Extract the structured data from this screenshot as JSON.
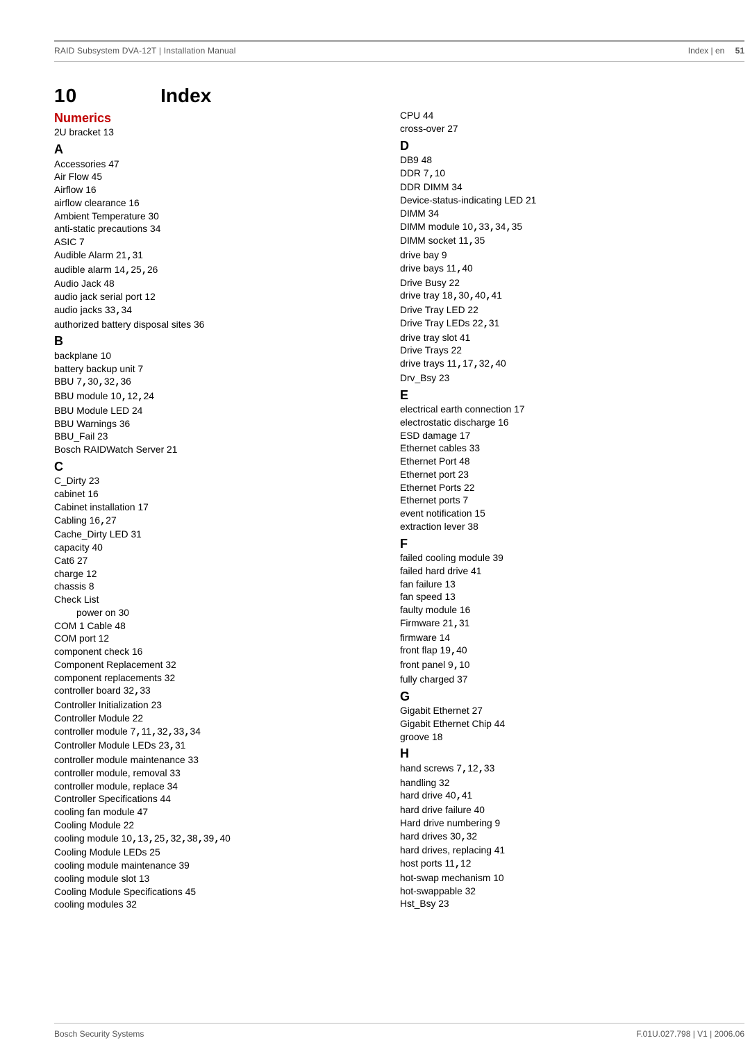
{
  "header": {
    "left": "RAID Subsystem DVA-12T | Installation Manual",
    "right_label": "Index | en",
    "right_page": "51"
  },
  "footer": {
    "left": "Bosch Security Systems",
    "right": "F.01U.027.798 | V1 | 2006.06"
  },
  "chapter": {
    "num": "10",
    "name": "Index"
  },
  "numerics_label": "Numerics",
  "left": {
    "numerics": [
      {
        "term": "2U bracket",
        "locs": [
          "13"
        ]
      }
    ],
    "groups": [
      {
        "letter": "A",
        "entries": [
          {
            "term": "Accessories",
            "locs": [
              "47"
            ]
          },
          {
            "term": "Air Flow",
            "locs": [
              "45"
            ]
          },
          {
            "term": "Airflow",
            "locs": [
              "16"
            ]
          },
          {
            "term": "airflow clearance",
            "locs": [
              "16"
            ]
          },
          {
            "term": "Ambient Temperature",
            "locs": [
              "30"
            ]
          },
          {
            "term": "anti-static precautions",
            "locs": [
              "34"
            ]
          },
          {
            "term": "ASIC",
            "locs": [
              "7"
            ]
          },
          {
            "term": "Audible Alarm",
            "locs": [
              "21",
              "31"
            ]
          },
          {
            "term": "audible alarm",
            "locs": [
              "14",
              "25",
              "26"
            ]
          },
          {
            "term": "Audio Jack",
            "locs": [
              "48"
            ]
          },
          {
            "term": "audio jack serial port",
            "locs": [
              "12"
            ]
          },
          {
            "term": "audio jacks",
            "locs": [
              "33",
              "34"
            ]
          },
          {
            "term": "authorized battery disposal sites",
            "locs": [
              "36"
            ]
          }
        ]
      },
      {
        "letter": "B",
        "entries": [
          {
            "term": "backplane",
            "locs": [
              "10"
            ]
          },
          {
            "term": "battery backup unit",
            "locs": [
              "7"
            ]
          },
          {
            "term": "BBU",
            "locs": [
              "7",
              "30",
              "32",
              "36"
            ]
          },
          {
            "term": "BBU module",
            "locs": [
              "10",
              "12",
              "24"
            ]
          },
          {
            "term": "BBU Module LED",
            "locs": [
              "24"
            ]
          },
          {
            "term": "BBU Warnings",
            "locs": [
              "36"
            ]
          },
          {
            "term": "BBU_Fail",
            "locs": [
              "23"
            ]
          },
          {
            "term": "Bosch RAIDWatch Server",
            "locs": [
              "21"
            ]
          }
        ]
      },
      {
        "letter": "C",
        "entries": [
          {
            "term": "C_Dirty",
            "locs": [
              "23"
            ]
          },
          {
            "term": "cabinet",
            "locs": [
              "16"
            ]
          },
          {
            "term": "Cabinet installation",
            "locs": [
              "17"
            ]
          },
          {
            "term": "Cabling",
            "locs": [
              "16",
              "27"
            ]
          },
          {
            "term": "Cache_Dirty LED",
            "locs": [
              "31"
            ]
          },
          {
            "term": "capacity",
            "locs": [
              "40"
            ]
          },
          {
            "term": "Cat6",
            "locs": [
              "27"
            ]
          },
          {
            "term": "charge",
            "locs": [
              "12"
            ]
          },
          {
            "term": "chassis",
            "locs": [
              "8"
            ]
          },
          {
            "term": "Check List",
            "locs": []
          },
          {
            "sub": true,
            "term": "power on",
            "locs": [
              "30"
            ]
          },
          {
            "term": "COM 1 Cable",
            "locs": [
              "48"
            ]
          },
          {
            "term": "COM port",
            "locs": [
              "12"
            ]
          },
          {
            "term": "component check",
            "locs": [
              "16"
            ]
          },
          {
            "term": "Component Replacement",
            "locs": [
              "32"
            ]
          },
          {
            "term": "component replacements",
            "locs": [
              "32"
            ]
          },
          {
            "term": "controller board",
            "locs": [
              "32",
              "33"
            ]
          },
          {
            "term": "Controller Initialization",
            "locs": [
              "23"
            ]
          },
          {
            "term": "Controller Module",
            "locs": [
              "22"
            ]
          },
          {
            "term": "controller module",
            "locs": [
              "7",
              "11",
              "32",
              "33",
              "34"
            ]
          },
          {
            "term": "Controller Module LEDs",
            "locs": [
              "23",
              "31"
            ]
          },
          {
            "term": "controller module maintenance",
            "locs": [
              "33"
            ]
          },
          {
            "term": "controller module, removal",
            "locs": [
              "33"
            ]
          },
          {
            "term": "controller module, replace",
            "locs": [
              "34"
            ]
          },
          {
            "term": "Controller Specifications",
            "locs": [
              "44"
            ]
          },
          {
            "term": "cooling fan module",
            "locs": [
              "47"
            ]
          },
          {
            "term": "Cooling Module",
            "locs": [
              "22"
            ]
          },
          {
            "term": "cooling module",
            "locs": [
              "10",
              "13",
              "25",
              "32",
              "38",
              "39",
              "40"
            ]
          },
          {
            "term": "Cooling Module LEDs",
            "locs": [
              "25"
            ]
          },
          {
            "term": "cooling module maintenance",
            "locs": [
              "39"
            ]
          },
          {
            "term": "cooling module slot",
            "locs": [
              "13"
            ]
          },
          {
            "term": "Cooling Module Specifications",
            "locs": [
              "45"
            ]
          },
          {
            "term": "cooling modules",
            "locs": [
              "32"
            ]
          }
        ]
      }
    ]
  },
  "right": {
    "pre": [
      {
        "term": "CPU",
        "locs": [
          "44"
        ]
      },
      {
        "term": "cross-over",
        "locs": [
          "27"
        ]
      }
    ],
    "groups": [
      {
        "letter": "D",
        "entries": [
          {
            "term": "DB9",
            "locs": [
              "48"
            ]
          },
          {
            "term": "DDR",
            "locs": [
              "7",
              "10"
            ]
          },
          {
            "term": "DDR DIMM",
            "locs": [
              "34"
            ]
          },
          {
            "term": "Device-status-indicating LED",
            "locs": [
              "21"
            ]
          },
          {
            "term": "DIMM",
            "locs": [
              "34"
            ]
          },
          {
            "term": "DIMM module",
            "locs": [
              "10",
              "33",
              "34",
              "35"
            ]
          },
          {
            "term": "DIMM socket",
            "locs": [
              "11",
              "35"
            ]
          },
          {
            "term": "drive bay",
            "locs": [
              "9"
            ]
          },
          {
            "term": "drive bays",
            "locs": [
              "11",
              "40"
            ]
          },
          {
            "term": "Drive Busy",
            "locs": [
              "22"
            ]
          },
          {
            "term": "drive tray",
            "locs": [
              "18",
              "30",
              "40",
              "41"
            ]
          },
          {
            "term": "Drive Tray LED",
            "locs": [
              "22"
            ]
          },
          {
            "term": "Drive Tray LEDs",
            "locs": [
              "22",
              "31"
            ]
          },
          {
            "term": "drive tray slot",
            "locs": [
              "41"
            ]
          },
          {
            "term": "Drive Trays",
            "locs": [
              "22"
            ]
          },
          {
            "term": "drive trays",
            "locs": [
              "11",
              "17",
              "32",
              "40"
            ]
          },
          {
            "term": "Drv_Bsy",
            "locs": [
              "23"
            ]
          }
        ]
      },
      {
        "letter": "E",
        "entries": [
          {
            "term": "electrical earth connection",
            "locs": [
              "17"
            ]
          },
          {
            "term": "electrostatic discharge",
            "locs": [
              "16"
            ]
          },
          {
            "term": "ESD damage",
            "locs": [
              "17"
            ]
          },
          {
            "term": "Ethernet cables",
            "locs": [
              "33"
            ]
          },
          {
            "term": "Ethernet Port",
            "locs": [
              "48"
            ]
          },
          {
            "term": "Ethernet port",
            "locs": [
              "23"
            ]
          },
          {
            "term": "Ethernet Ports",
            "locs": [
              "22"
            ]
          },
          {
            "term": "Ethernet ports",
            "locs": [
              "7"
            ]
          },
          {
            "term": "event notification",
            "locs": [
              "15"
            ]
          },
          {
            "term": "extraction lever",
            "locs": [
              "38"
            ]
          }
        ]
      },
      {
        "letter": "F",
        "entries": [
          {
            "term": "failed cooling module",
            "locs": [
              "39"
            ]
          },
          {
            "term": "failed hard drive",
            "locs": [
              "41"
            ]
          },
          {
            "term": "fan failure",
            "locs": [
              "13"
            ]
          },
          {
            "term": "fan speed",
            "locs": [
              "13"
            ]
          },
          {
            "term": "faulty module",
            "locs": [
              "16"
            ]
          },
          {
            "term": "Firmware",
            "locs": [
              "21",
              "31"
            ]
          },
          {
            "term": "firmware",
            "locs": [
              "14"
            ]
          },
          {
            "term": "front flap",
            "locs": [
              "19",
              "40"
            ]
          },
          {
            "term": "front panel",
            "locs": [
              "9",
              "10"
            ]
          },
          {
            "term": "fully charged",
            "locs": [
              "37"
            ]
          }
        ]
      },
      {
        "letter": "G",
        "entries": [
          {
            "term": "Gigabit Ethernet",
            "locs": [
              "27"
            ]
          },
          {
            "term": "Gigabit Ethernet Chip",
            "locs": [
              "44"
            ]
          },
          {
            "term": "groove",
            "locs": [
              "18"
            ]
          }
        ]
      },
      {
        "letter": "H",
        "entries": [
          {
            "term": "hand screws",
            "locs": [
              "7",
              "12",
              "33"
            ]
          },
          {
            "term": "handling",
            "locs": [
              "32"
            ]
          },
          {
            "term": "hard drive",
            "locs": [
              "40",
              "41"
            ]
          },
          {
            "term": "hard drive failure",
            "locs": [
              "40"
            ]
          },
          {
            "term": "Hard drive numbering",
            "locs": [
              "9"
            ]
          },
          {
            "term": "hard drives",
            "locs": [
              "30",
              "32"
            ]
          },
          {
            "term": "hard drives, replacing",
            "locs": [
              "41"
            ]
          },
          {
            "term": "host ports",
            "locs": [
              "11",
              "12"
            ]
          },
          {
            "term": "hot-swap mechanism",
            "locs": [
              "10"
            ]
          },
          {
            "term": "hot-swappable",
            "locs": [
              "32"
            ]
          },
          {
            "term": "Hst_Bsy",
            "locs": [
              "23"
            ]
          }
        ]
      }
    ]
  }
}
